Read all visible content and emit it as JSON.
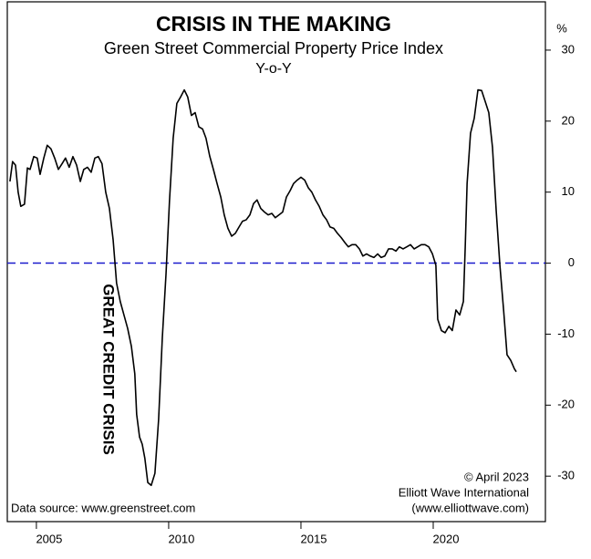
{
  "chart_data": {
    "type": "line",
    "title": "CRISIS IN THE MAKING",
    "subtitle": [
      "Green Street Commercial Property Price Index",
      "Y-o-Y"
    ],
    "y_unit_label": "%",
    "annotations": {
      "event": "GREAT CREDIT CRISIS",
      "source": "Data source: www.greenstreet.com",
      "credit": [
        "© April 2023",
        "Elliott Wave International",
        "(www.elliottwave.com)"
      ]
    },
    "color": "#000000",
    "reference_line": {
      "value": 0,
      "color": "#1a1acc",
      "dashed": true
    },
    "event_color": "#e00000",
    "xlim": [
      2003.9,
      2024.24
    ],
    "xticks": [
      2005,
      2010,
      2015,
      2020
    ],
    "ylim": [
      -36.4,
      36.8
    ],
    "yticks": [
      30,
      20,
      10,
      0,
      -10,
      -20,
      -30
    ],
    "y_axis_side": "right",
    "grid": false,
    "x": [
      2004.0,
      2004.1,
      2004.21,
      2004.31,
      2004.41,
      2004.55,
      2004.66,
      2004.76,
      2004.9,
      2005.03,
      2005.14,
      2005.28,
      2005.41,
      2005.55,
      2005.69,
      2005.83,
      2005.97,
      2006.1,
      2006.24,
      2006.38,
      2006.52,
      2006.66,
      2006.79,
      2006.93,
      2007.07,
      2007.21,
      2007.34,
      2007.48,
      2007.62,
      2007.76,
      2007.9,
      2008.03,
      2008.17,
      2008.31,
      2008.45,
      2008.59,
      2008.72,
      2008.79,
      2008.9,
      2009.0,
      2009.1,
      2009.21,
      2009.34,
      2009.48,
      2009.62,
      2009.76,
      2009.9,
      2010.03,
      2010.17,
      2010.31,
      2010.45,
      2010.59,
      2010.72,
      2010.86,
      2011.0,
      2011.14,
      2011.28,
      2011.41,
      2011.55,
      2011.69,
      2011.83,
      2011.97,
      2012.1,
      2012.24,
      2012.38,
      2012.52,
      2012.66,
      2012.79,
      2012.93,
      2013.07,
      2013.21,
      2013.34,
      2013.48,
      2013.62,
      2013.76,
      2013.9,
      2014.03,
      2014.17,
      2014.31,
      2014.45,
      2014.59,
      2014.72,
      2014.86,
      2015.0,
      2015.14,
      2015.28,
      2015.41,
      2015.55,
      2015.69,
      2015.83,
      2015.97,
      2016.1,
      2016.24,
      2016.38,
      2016.52,
      2016.66,
      2016.79,
      2016.93,
      2017.07,
      2017.21,
      2017.34,
      2017.48,
      2017.62,
      2017.76,
      2017.9,
      2018.03,
      2018.17,
      2018.31,
      2018.45,
      2018.59,
      2018.72,
      2018.86,
      2019.0,
      2019.14,
      2019.28,
      2019.41,
      2019.55,
      2019.69,
      2019.83,
      2019.97,
      2020.1,
      2020.17,
      2020.31,
      2020.45,
      2020.59,
      2020.72,
      2020.86,
      2021.0,
      2021.14,
      2021.21,
      2021.28,
      2021.41,
      2021.55,
      2021.69,
      2021.83,
      2021.97,
      2022.1,
      2022.24,
      2022.38,
      2022.52,
      2022.66,
      2022.79,
      2022.93,
      2023.07,
      2023.14
    ],
    "values": [
      11.5,
      14.3,
      13.8,
      10,
      8,
      8.3,
      13.4,
      13.2,
      15,
      14.8,
      12.5,
      14.8,
      16.6,
      16.1,
      14.8,
      13.2,
      14,
      14.8,
      13.5,
      15,
      13.8,
      11.5,
      13.2,
      13.5,
      12.8,
      14.8,
      15,
      14,
      10,
      7.7,
      3.3,
      -2.8,
      -5.4,
      -7.3,
      -9.2,
      -11.7,
      -15.6,
      -21.3,
      -24.5,
      -25.5,
      -27.5,
      -30.9,
      -31.3,
      -29.6,
      -22,
      -10.5,
      -1.5,
      8.7,
      17.6,
      22.5,
      23.4,
      24.4,
      23.4,
      20.8,
      21.2,
      19.2,
      18.9,
      17.6,
      15.1,
      13.2,
      11.2,
      9.3,
      6.8,
      4.9,
      3.8,
      4.2,
      5.1,
      5.9,
      6.1,
      6.8,
      8.4,
      8.9,
      7.7,
      7.2,
      6.8,
      7.0,
      6.4,
      6.8,
      7.2,
      9.3,
      10.2,
      11.2,
      11.7,
      12.1,
      11.7,
      10.6,
      10.0,
      8.9,
      8.0,
      6.8,
      6.1,
      5.1,
      4.9,
      4.2,
      3.6,
      2.9,
      2.3,
      2.6,
      2.6,
      2.0,
      1.0,
      1.3,
      1.0,
      0.8,
      1.3,
      0.8,
      1.0,
      2.0,
      2.0,
      1.7,
      2.3,
      2.0,
      2.3,
      2.6,
      2.0,
      2.3,
      2.6,
      2.6,
      2.3,
      1.3,
      -0.3,
      -7.9,
      -9.5,
      -9.8,
      -8.9,
      -9.5,
      -6.6,
      -7.3,
      -5.4,
      2.3,
      11.2,
      18.3,
      20.4,
      24.4,
      24.3,
      22.7,
      21.2,
      16.3,
      7.4,
      -0.3,
      -6.6,
      -12.9,
      -13.7,
      -14.9,
      -15.3
    ]
  }
}
